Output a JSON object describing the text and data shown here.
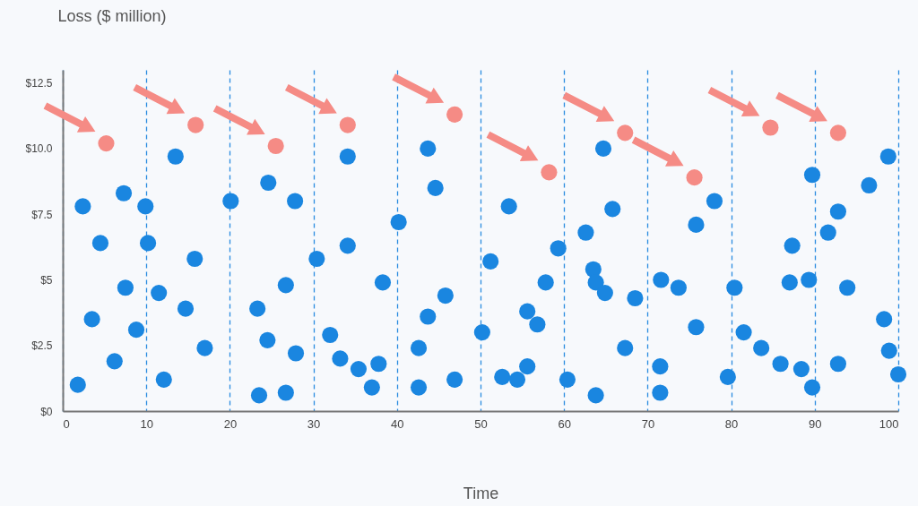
{
  "chart_data": {
    "type": "scatter",
    "xlabel": "Time",
    "ylabel": "Loss ($ million)",
    "xlim": [
      0,
      100
    ],
    "xticks": [
      0,
      10,
      20,
      30,
      40,
      50,
      60,
      70,
      80,
      90,
      100
    ],
    "ylim": [
      0,
      13
    ],
    "yticks": [
      {
        "value": 0,
        "label": "$0"
      },
      {
        "value": 2.5,
        "label": "$2.5"
      },
      {
        "value": 5,
        "label": "$5"
      },
      {
        "value": 7.5,
        "label": "$7.5"
      },
      {
        "value": 10,
        "label": "$10.0"
      },
      {
        "value": 12.5,
        "label": "$12.5"
      }
    ],
    "grid": "x",
    "legend": false,
    "marker": "circle",
    "series": [
      {
        "color": "#1a86e0",
        "x": [
          1.8,
          2.4,
          3.5,
          4.5,
          6.2,
          7.3,
          7.5,
          8.8,
          9.9,
          10.2,
          11.5,
          12.1,
          13.5,
          14.7,
          15.8,
          17.0,
          20.1,
          23.3,
          24.5,
          24.6,
          23.5,
          27.8,
          27.9,
          26.7,
          26.7,
          30.4,
          32.0,
          33.2,
          34.1,
          34.1,
          35.4,
          37.0,
          37.8,
          38.3,
          40.2,
          42.6,
          42.6,
          43.7,
          44.6,
          43.7,
          45.8,
          46.9,
          50.2,
          51.2,
          53.4,
          52.6,
          54.4,
          55.6,
          55.6,
          56.8,
          57.8,
          59.3,
          60.4,
          62.6,
          63.5,
          63.8,
          64.9,
          63.8,
          64.7,
          65.8,
          67.3,
          68.5,
          71.6,
          73.7,
          71.5,
          71.5,
          75.8,
          78.0,
          75.8,
          79.6,
          80.4,
          81.5,
          83.6,
          85.9,
          88.4,
          89.7,
          87.3,
          87.0,
          89.3,
          89.7,
          92.8,
          91.6,
          93.9,
          92.8,
          96.5,
          98.8,
          98.3,
          98.9,
          100.0
        ],
        "values": [
          1.0,
          7.8,
          3.5,
          6.4,
          1.9,
          8.3,
          4.7,
          3.1,
          7.8,
          6.4,
          4.5,
          1.2,
          9.7,
          3.9,
          5.8,
          2.4,
          8.0,
          3.9,
          2.7,
          8.7,
          0.6,
          8.0,
          2.2,
          4.8,
          0.7,
          5.8,
          2.9,
          2.0,
          9.7,
          6.3,
          1.6,
          0.9,
          1.8,
          4.9,
          7.2,
          2.4,
          0.9,
          10.0,
          8.5,
          3.6,
          4.4,
          1.2,
          3.0,
          5.7,
          7.8,
          1.3,
          1.2,
          1.7,
          3.8,
          3.3,
          4.9,
          6.2,
          1.2,
          6.8,
          5.4,
          4.9,
          4.5,
          0.6,
          10.0,
          7.7,
          2.4,
          4.3,
          5.0,
          4.7,
          1.7,
          0.7,
          7.1,
          8.0,
          3.2,
          1.3,
          4.7,
          3.0,
          2.4,
          1.8,
          1.6,
          0.9,
          6.3,
          4.9,
          5.0,
          9.0,
          7.6,
          6.8,
          4.7,
          1.8,
          8.6,
          9.7,
          3.5,
          2.3,
          1.4
        ]
      },
      {
        "color": "#f58b85",
        "x": [
          5.2,
          15.9,
          25.5,
          34.1,
          46.9,
          58.2,
          67.3,
          75.6,
          84.7,
          92.8
        ],
        "values": [
          10.2,
          10.9,
          10.1,
          10.9,
          11.3,
          9.1,
          10.6,
          8.9,
          10.8,
          10.6
        ]
      }
    ]
  }
}
